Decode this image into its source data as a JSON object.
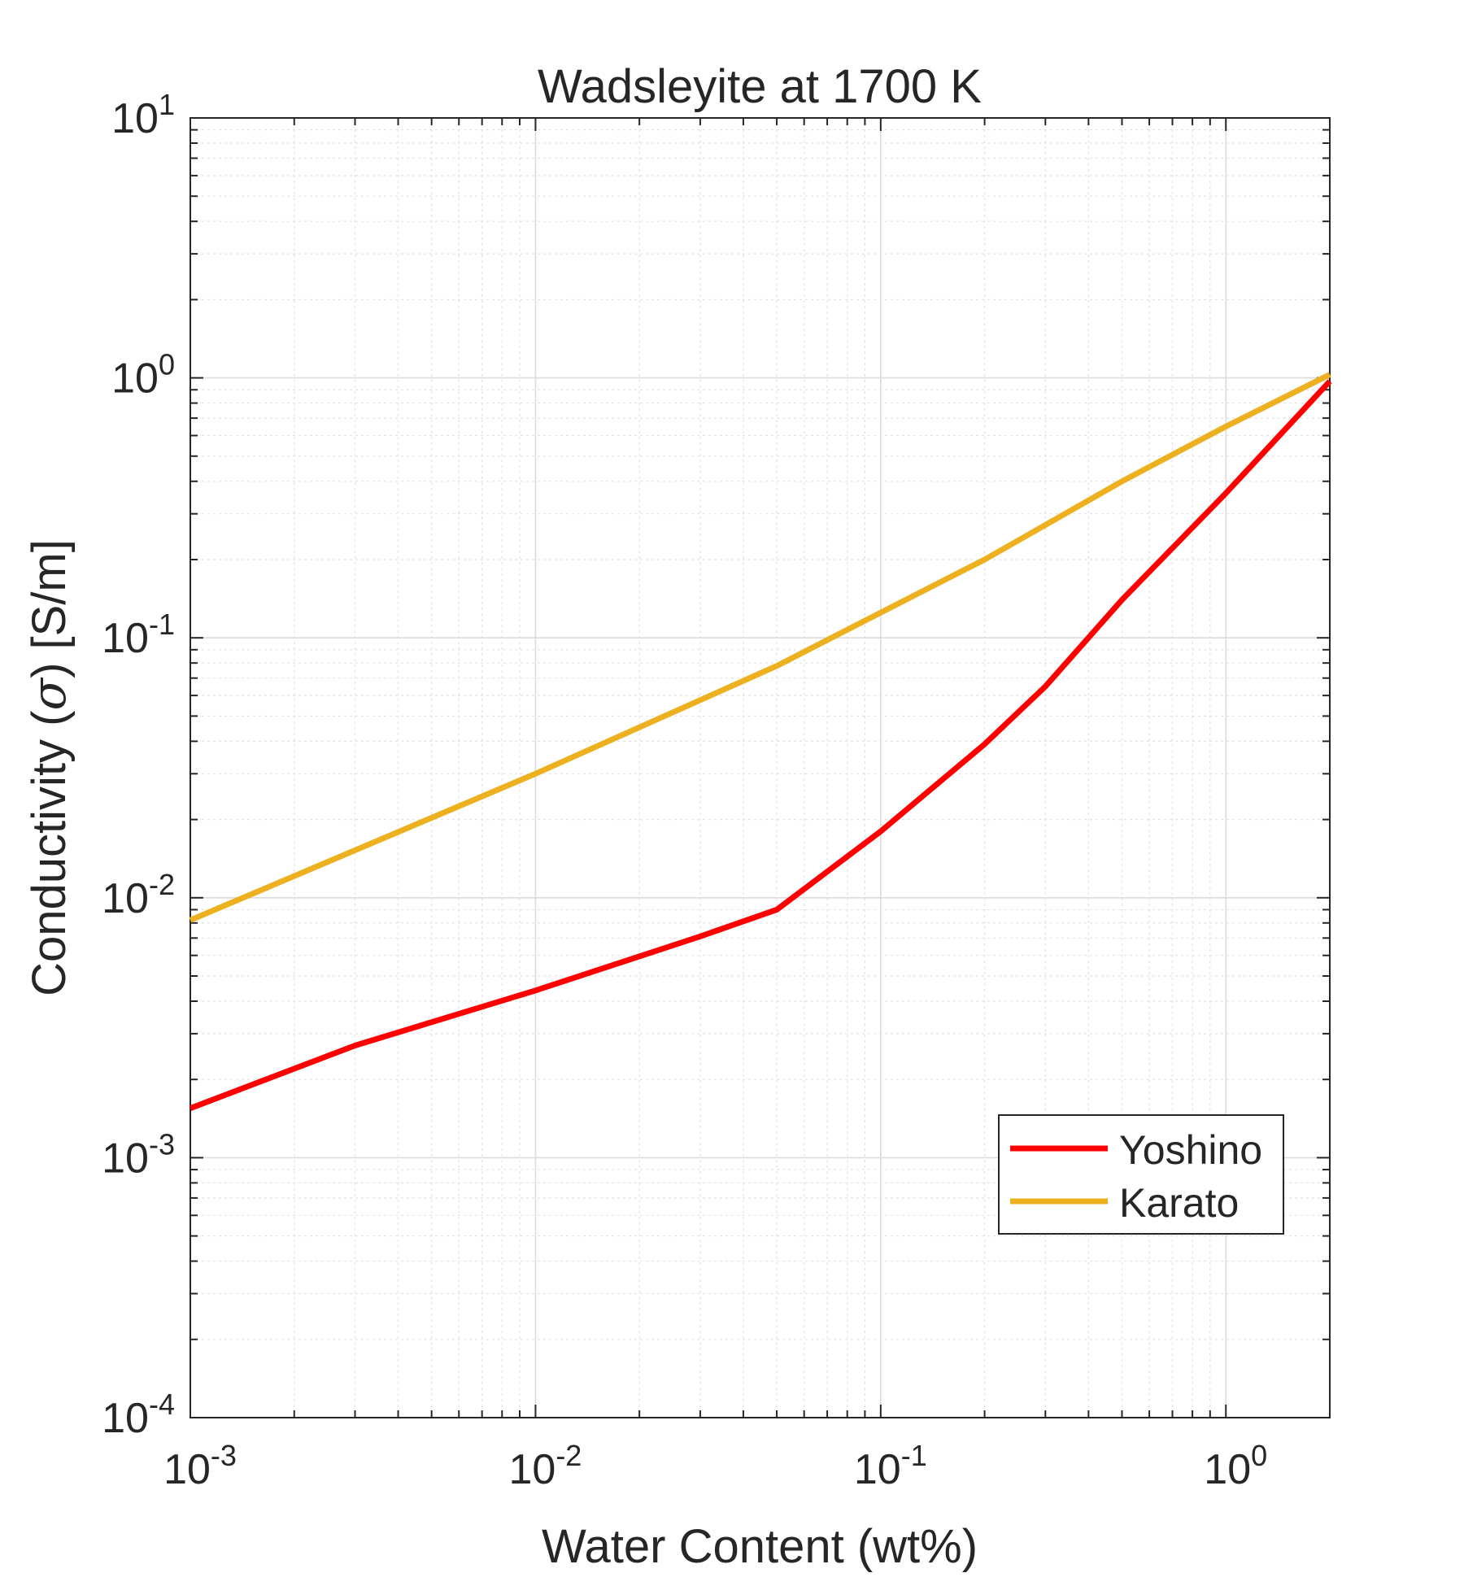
{
  "chart_data": {
    "type": "line",
    "title": "Wadsleyite at 1700 K",
    "xlabel": "Water Content (wt%)",
    "ylabel_text": "Conductivity (",
    "ylabel_symbol": "σ",
    "ylabel_unit": ") [S/m]",
    "xscale": "log",
    "yscale": "log",
    "xlim": [
      0.001,
      2
    ],
    "ylim": [
      0.0001,
      10
    ],
    "grid": true,
    "minor_grid": true,
    "legend_position": "lower-right",
    "x_ticks": [
      {
        "value": 0.001,
        "base": "10",
        "exp": "-3"
      },
      {
        "value": 0.01,
        "base": "10",
        "exp": "-2"
      },
      {
        "value": 0.1,
        "base": "10",
        "exp": "-1"
      },
      {
        "value": 1,
        "base": "10",
        "exp": "0"
      }
    ],
    "y_ticks": [
      {
        "value": 0.0001,
        "base": "10",
        "exp": "-4"
      },
      {
        "value": 0.001,
        "base": "10",
        "exp": "-3"
      },
      {
        "value": 0.01,
        "base": "10",
        "exp": "-2"
      },
      {
        "value": 0.1,
        "base": "10",
        "exp": "-1"
      },
      {
        "value": 1,
        "base": "10",
        "exp": "0"
      },
      {
        "value": 10,
        "base": "10",
        "exp": "1"
      }
    ],
    "series": [
      {
        "name": "Yoshino",
        "color": "#ff0000",
        "x": [
          0.001,
          0.003,
          0.01,
          0.03,
          0.05,
          0.1,
          0.2,
          0.3,
          0.5,
          1.0,
          2.0
        ],
        "y": [
          0.00155,
          0.0027,
          0.0044,
          0.0071,
          0.009,
          0.018,
          0.039,
          0.065,
          0.14,
          0.36,
          0.97
        ]
      },
      {
        "name": "Karato",
        "color": "#edb120",
        "x": [
          0.001,
          0.01,
          0.05,
          0.1,
          0.2,
          0.5,
          1.0,
          2.0
        ],
        "y": [
          0.0082,
          0.03,
          0.078,
          0.125,
          0.2,
          0.4,
          0.65,
          1.03
        ]
      }
    ]
  }
}
